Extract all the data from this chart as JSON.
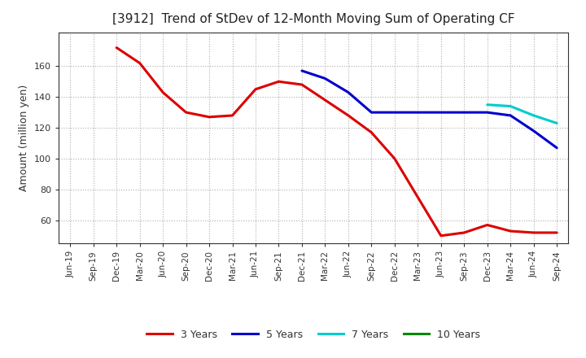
{
  "title": "[3912]  Trend of StDev of 12-Month Moving Sum of Operating CF",
  "ylabel": "Amount (million yen)",
  "background_color": "#ffffff",
  "plot_bg_color": "#ffffff",
  "grid_color": "#999999",
  "ylim": [
    45,
    182
  ],
  "yticks": [
    60,
    80,
    100,
    120,
    140,
    160
  ],
  "series": {
    "3yr": {
      "color": "#dd0000",
      "label": "3 Years",
      "x": [
        "Jun-19",
        "Sep-19",
        "Dec-19",
        "Mar-20",
        "Jun-20",
        "Sep-20",
        "Dec-20",
        "Mar-21",
        "Jun-21",
        "Sep-21",
        "Dec-21",
        "Mar-22",
        "Jun-22",
        "Sep-22",
        "Dec-22",
        "Mar-23",
        "Jun-23",
        "Sep-23",
        "Dec-23",
        "Mar-24",
        "Jun-24",
        "Sep-24"
      ],
      "y": [
        null,
        null,
        172,
        162,
        143,
        130,
        127,
        128,
        145,
        150,
        148,
        138,
        128,
        117,
        100,
        75,
        50,
        52,
        57,
        53,
        52,
        52
      ]
    },
    "5yr": {
      "color": "#0000cc",
      "label": "5 Years",
      "x": [
        "Dec-21",
        "Mar-22",
        "Jun-22",
        "Sep-22",
        "Dec-22",
        "Mar-23",
        "Jun-23",
        "Sep-23",
        "Dec-23",
        "Mar-24",
        "Jun-24",
        "Sep-24"
      ],
      "y": [
        157,
        152,
        143,
        130,
        130,
        130,
        130,
        130,
        130,
        128,
        118,
        107
      ]
    },
    "7yr": {
      "color": "#00cccc",
      "label": "7 Years",
      "x": [
        "Dec-23",
        "Mar-24",
        "Jun-24",
        "Sep-24"
      ],
      "y": [
        135,
        134,
        128,
        123
      ]
    },
    "10yr": {
      "color": "#008800",
      "label": "10 Years",
      "x": [],
      "y": []
    }
  },
  "xticks": [
    "Jun-19",
    "Sep-19",
    "Dec-19",
    "Mar-20",
    "Jun-20",
    "Sep-20",
    "Dec-20",
    "Mar-21",
    "Jun-21",
    "Sep-21",
    "Dec-21",
    "Mar-22",
    "Jun-22",
    "Sep-22",
    "Dec-22",
    "Mar-23",
    "Jun-23",
    "Sep-23",
    "Dec-23",
    "Mar-24",
    "Jun-24",
    "Sep-24"
  ],
  "legend_colors": [
    "#dd0000",
    "#0000cc",
    "#00cccc",
    "#008800"
  ],
  "legend_labels": [
    "3 Years",
    "5 Years",
    "7 Years",
    "10 Years"
  ]
}
